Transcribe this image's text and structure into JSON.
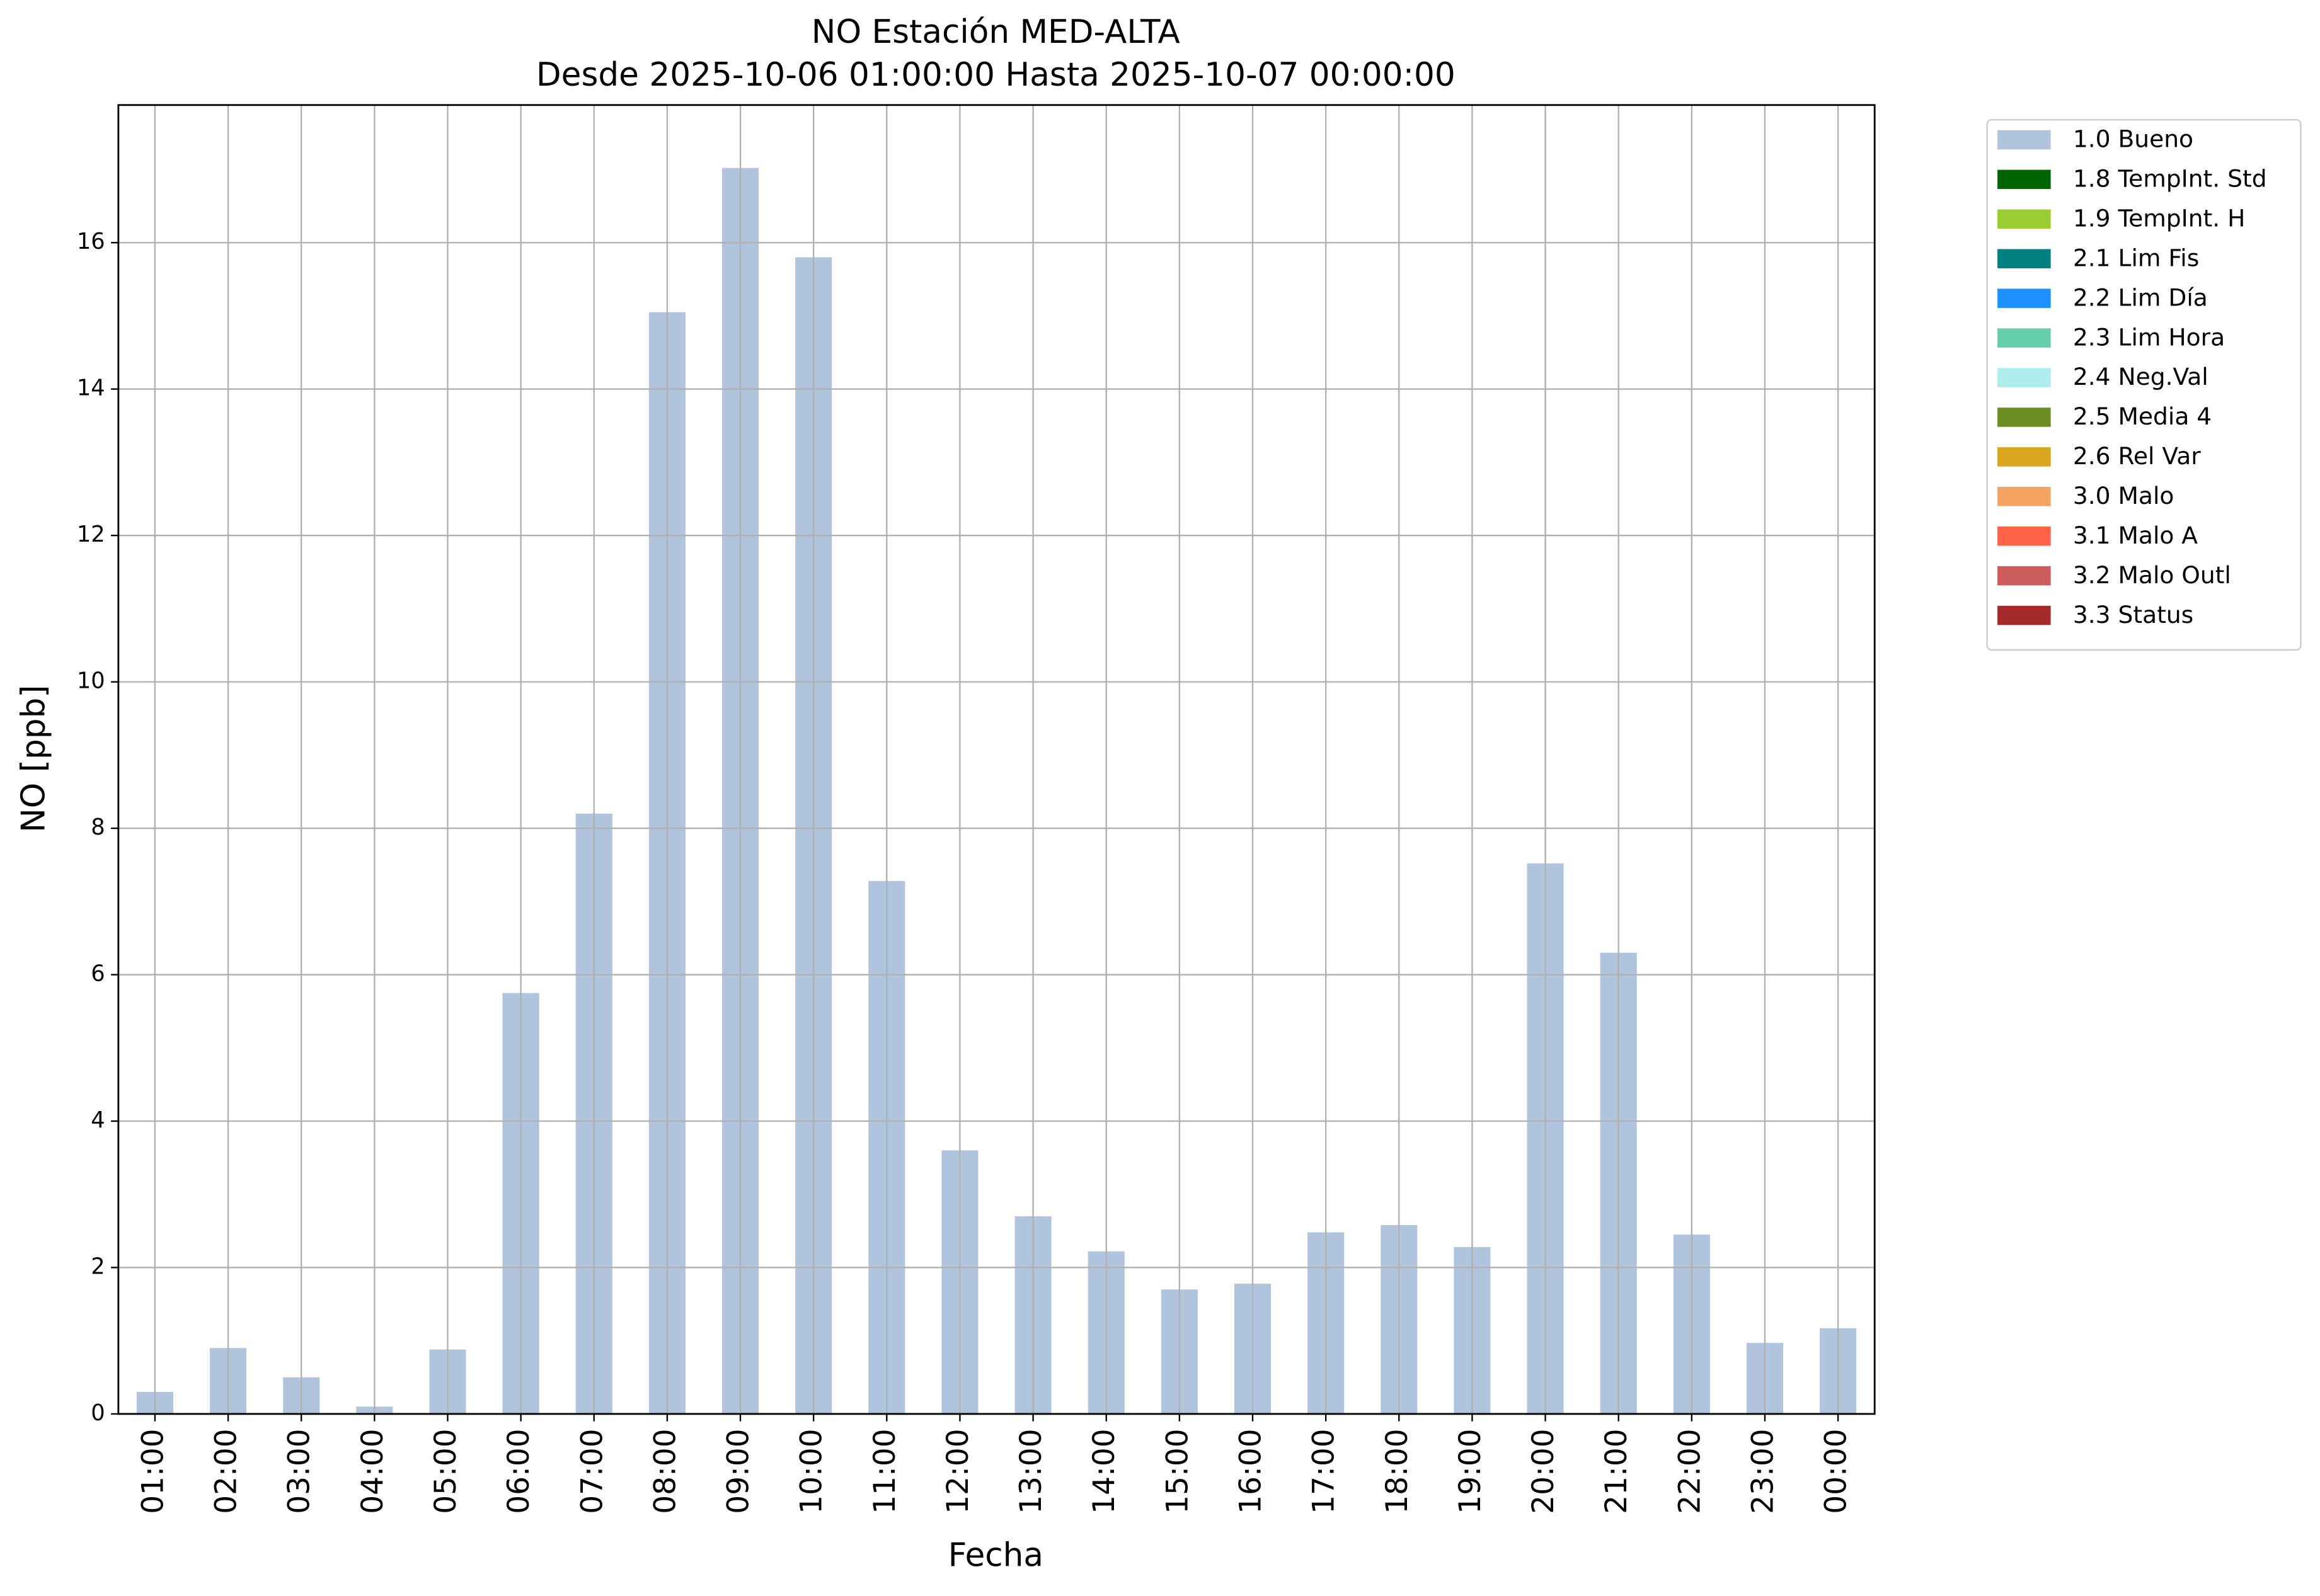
{
  "chart_data": {
    "type": "stacked_bar",
    "title": "NO Estación MED-ALTA",
    "subtitle": "Desde 2025-10-06 01:00:00 Hasta 2025-10-07 00:00:00",
    "x_label": "Fecha",
    "y_label": "NO [ppb]",
    "categories": [
      "01:00",
      "02:00",
      "03:00",
      "04:00",
      "05:00",
      "06:00",
      "07:00",
      "08:00",
      "09:00",
      "10:00",
      "11:00",
      "12:00",
      "13:00",
      "14:00",
      "15:00",
      "16:00",
      "17:00",
      "18:00",
      "19:00",
      "20:00",
      "21:00",
      "22:00",
      "23:00",
      "00:00"
    ],
    "series": [
      {
        "name": "1.0 Bueno",
        "color": "#b0c4de",
        "values": [
          0.3,
          0.9,
          0.5,
          0.1,
          0.88,
          5.75,
          8.2,
          15.05,
          17.02,
          15.8,
          7.28,
          3.6,
          2.7,
          2.22,
          1.7,
          1.78,
          2.48,
          2.58,
          2.28,
          7.52,
          6.3,
          2.45,
          0.97,
          1.17
        ]
      },
      {
        "name": "1.8 TempInt. Std",
        "color": "#006400",
        "values": [
          0,
          0,
          0,
          0,
          0,
          0,
          0,
          0,
          0,
          0,
          0,
          0,
          0,
          0,
          0,
          0,
          0,
          0,
          0,
          0,
          0,
          0,
          0,
          0
        ]
      },
      {
        "name": "1.9 TempInt. H",
        "color": "#9acd32",
        "values": [
          0,
          0,
          0,
          0,
          0,
          0,
          0,
          0,
          0,
          0,
          0,
          0,
          0,
          0,
          0,
          0,
          0,
          0,
          0,
          0,
          0,
          0,
          0,
          0
        ]
      },
      {
        "name": "2.1 Lim Fis",
        "color": "#008080",
        "values": [
          0,
          0,
          0,
          0,
          0,
          0,
          0,
          0,
          0,
          0,
          0,
          0,
          0,
          0,
          0,
          0,
          0,
          0,
          0,
          0,
          0,
          0,
          0,
          0
        ]
      },
      {
        "name": "2.2 Lim Día",
        "color": "#1e90ff",
        "values": [
          0,
          0,
          0,
          0,
          0,
          0,
          0,
          0,
          0,
          0,
          0,
          0,
          0,
          0,
          0,
          0,
          0,
          0,
          0,
          0,
          0,
          0,
          0,
          0
        ]
      },
      {
        "name": "2.3 Lim Hora",
        "color": "#66cdaa",
        "values": [
          0,
          0,
          0,
          0,
          0,
          0,
          0,
          0,
          0,
          0,
          0,
          0,
          0,
          0,
          0,
          0,
          0,
          0,
          0,
          0,
          0,
          0,
          0,
          0
        ]
      },
      {
        "name": "2.4 Neg.Val",
        "color": "#afeeee",
        "values": [
          0,
          0,
          0,
          0,
          0,
          0,
          0,
          0,
          0,
          0,
          0,
          0,
          0,
          0,
          0,
          0,
          0,
          0,
          0,
          0,
          0,
          0,
          0,
          0
        ]
      },
      {
        "name": "2.5 Media 4",
        "color": "#6b8e23",
        "values": [
          0,
          0,
          0,
          0,
          0,
          0,
          0,
          0,
          0,
          0,
          0,
          0,
          0,
          0,
          0,
          0,
          0,
          0,
          0,
          0,
          0,
          0,
          0,
          0
        ]
      },
      {
        "name": "2.6 Rel Var",
        "color": "#daa520",
        "values": [
          0,
          0,
          0,
          0,
          0,
          0,
          0,
          0,
          0,
          0,
          0,
          0,
          0,
          0,
          0,
          0,
          0,
          0,
          0,
          0,
          0,
          0,
          0,
          0
        ]
      },
      {
        "name": "3.0 Malo",
        "color": "#f4a460",
        "values": [
          0,
          0,
          0,
          0,
          0,
          0,
          0,
          0,
          0,
          0,
          0,
          0,
          0,
          0,
          0,
          0,
          0,
          0,
          0,
          0,
          0,
          0,
          0,
          0
        ]
      },
      {
        "name": "3.1 Malo A",
        "color": "#ff6347",
        "values": [
          0,
          0,
          0,
          0,
          0,
          0,
          0,
          0,
          0,
          0,
          0,
          0,
          0,
          0,
          0,
          0,
          0,
          0,
          0,
          0,
          0,
          0,
          0,
          0
        ]
      },
      {
        "name": "3.2 Malo Outl",
        "color": "#cd5c5c",
        "values": [
          0,
          0,
          0,
          0,
          0,
          0,
          0,
          0,
          0,
          0,
          0,
          0,
          0,
          0,
          0,
          0,
          0,
          0,
          0,
          0,
          0,
          0,
          0,
          0
        ]
      },
      {
        "name": "3.3 Status",
        "color": "#a52a2a",
        "values": [
          0,
          0,
          0,
          0,
          0,
          0,
          0,
          0,
          0,
          0,
          0,
          0,
          0,
          0,
          0,
          0,
          0,
          0,
          0,
          0,
          0,
          0,
          0,
          0
        ]
      }
    ],
    "ylim": [
      0,
      17.88
    ],
    "yticks": [
      0,
      2,
      4,
      6,
      8,
      10,
      12,
      14,
      16
    ],
    "grid": true,
    "legend": "outside upper right"
  }
}
